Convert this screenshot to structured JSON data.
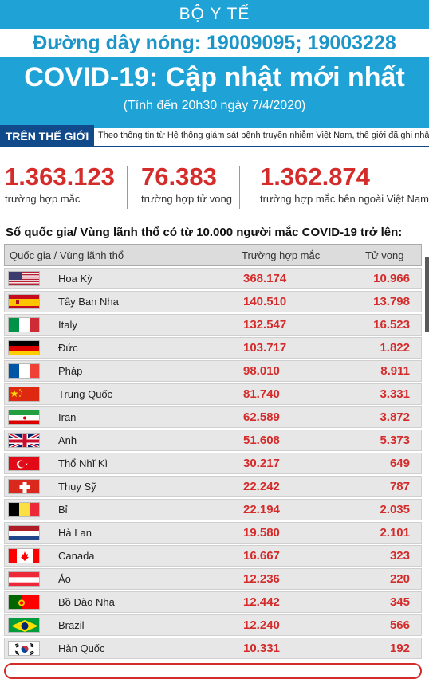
{
  "header": {
    "ministry": "BỘ Y TẾ",
    "hotline": "Đường dây nóng: 19009095; 19003228",
    "title": "COVID-19: Cập nhật mới nhất",
    "date": "(Tính đến 20h30 ngày 7/4/2020)"
  },
  "world": {
    "tag": "TRÊN THẾ GIỚI",
    "description": "Theo thông tin từ Hệ thống giám sát bệnh truyền nhiễm Việt Nam, thế giới đã ghi nhận:"
  },
  "stats": [
    {
      "value": "1.363.123",
      "label": "trường hợp mắc"
    },
    {
      "value": "76.383",
      "label": "trường hợp tử vong"
    },
    {
      "value": "1.362.874",
      "label": "trường hợp  mắc bên ngoài Việt Nam"
    }
  ],
  "table": {
    "subtitle": "Số quốc gia/ Vùng lãnh thổ có từ 10.000 người  mắc COVID-19 trở lên:",
    "headers": {
      "country": "Quốc gia / Vùng lãnh thổ",
      "cases": "Trường hợp mắc",
      "deaths": "Tử vong"
    },
    "rows": [
      {
        "flag": "usa-flag",
        "country": "Hoa Kỳ",
        "cases": "368.174",
        "deaths": "10.966"
      },
      {
        "flag": "spain-flag",
        "country": "Tây Ban Nha",
        "cases": "140.510",
        "deaths": "13.798"
      },
      {
        "flag": "italy-flag",
        "country": "Italy",
        "cases": "132.547",
        "deaths": "16.523"
      },
      {
        "flag": "germany-flag",
        "country": "Đức",
        "cases": "103.717",
        "deaths": "1.822"
      },
      {
        "flag": "france-flag",
        "country": "Pháp",
        "cases": "98.010",
        "deaths": "8.911"
      },
      {
        "flag": "china-flag",
        "country": "Trung Quốc",
        "cases": "81.740",
        "deaths": "3.331"
      },
      {
        "flag": "iran-flag",
        "country": "Iran",
        "cases": "62.589",
        "deaths": "3.872"
      },
      {
        "flag": "uk-flag",
        "country": "Anh",
        "cases": "51.608",
        "deaths": "5.373"
      },
      {
        "flag": "turkey-flag",
        "country": "Thổ Nhĩ Kì",
        "cases": "30.217",
        "deaths": "649"
      },
      {
        "flag": "switzerland-flag",
        "country": "Thụy Sỹ",
        "cases": "22.242",
        "deaths": "787"
      },
      {
        "flag": "belgium-flag",
        "country": "Bỉ",
        "cases": "22.194",
        "deaths": "2.035"
      },
      {
        "flag": "netherlands-flag",
        "country": "Hà Lan",
        "cases": "19.580",
        "deaths": "2.101"
      },
      {
        "flag": "canada-flag",
        "country": "Canada",
        "cases": "16.667",
        "deaths": "323"
      },
      {
        "flag": "austria-flag",
        "country": "Áo",
        "cases": "12.236",
        "deaths": "220"
      },
      {
        "flag": "portugal-flag",
        "country": "Bồ Đào Nha",
        "cases": "12.442",
        "deaths": "345"
      },
      {
        "flag": "brazil-flag",
        "country": "Brazil",
        "cases": "12.240",
        "deaths": "566"
      },
      {
        "flag": "south-korea-flag",
        "country": "Hàn Quốc",
        "cases": "10.331",
        "deaths": "192"
      }
    ]
  },
  "colors": {
    "header_blue": "#1fa3d6",
    "accent_red": "#d42b2b",
    "navy": "#114a8b"
  }
}
